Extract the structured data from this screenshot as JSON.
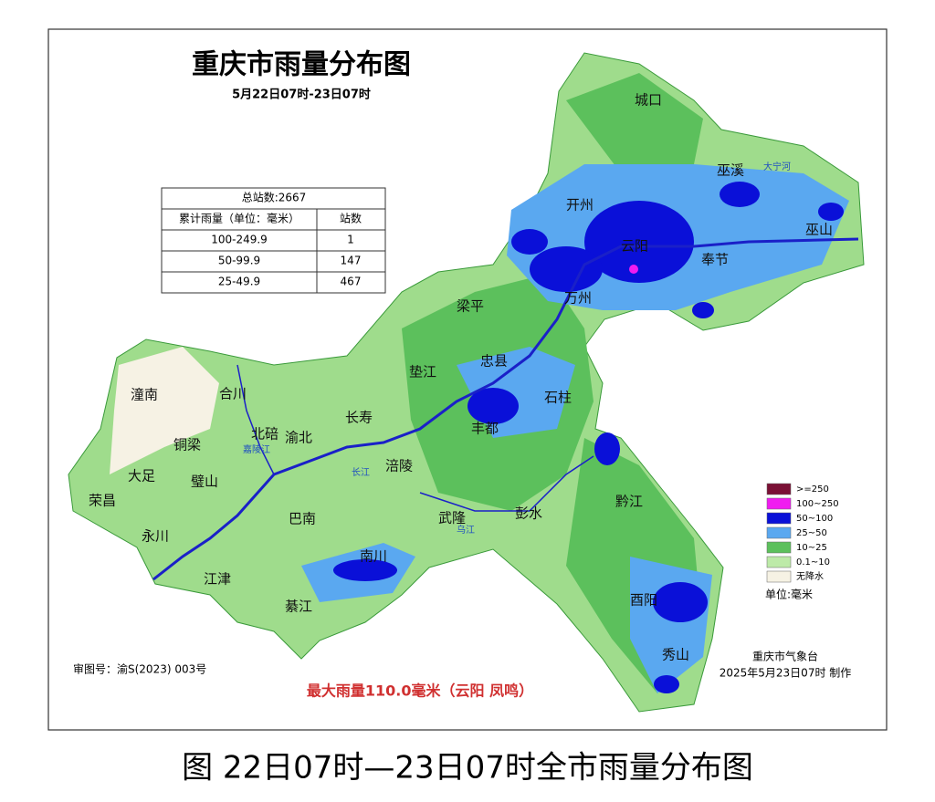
{
  "header": {
    "title": "重庆市雨量分布图",
    "subtitle": "5月22日07时-23日07时"
  },
  "table": {
    "total": "总站数:2667",
    "header": [
      "累计雨量（单位：毫米）",
      "站数"
    ],
    "rows": [
      [
        "100-249.9",
        "1"
      ],
      [
        "50-99.9",
        "147"
      ],
      [
        "25-49.9",
        "467"
      ]
    ]
  },
  "legend": {
    "items": [
      {
        "label": ">=250",
        "color": "#7a1035"
      },
      {
        "label": "100~250",
        "color": "#f01cf0"
      },
      {
        "label": "50~100",
        "color": "#0a10d8"
      },
      {
        "label": "25~50",
        "color": "#5aa8f0"
      },
      {
        "label": "10~25",
        "color": "#5cc05c"
      },
      {
        "label": "0.1~10",
        "color": "#bdeaa8"
      },
      {
        "label": "无降水",
        "color": "#f6f2e4"
      }
    ],
    "unit": "单位:毫米"
  },
  "places": [
    "城口",
    "巫溪",
    "开州",
    "云阳",
    "奉节",
    "巫山",
    "万州",
    "梁平",
    "忠县",
    "石柱",
    "垫江",
    "丰都",
    "长寿",
    "涪陵",
    "渝北",
    "北碚",
    "合川",
    "潼南",
    "铜梁",
    "大足",
    "荣昌",
    "璧山",
    "永川",
    "江津",
    "巴南",
    "南川",
    "綦江",
    "武隆",
    "彭水",
    "黔江",
    "酉阳",
    "秀山"
  ],
  "rivers": [
    "长江",
    "嘉陵江",
    "乌江",
    "大宁河"
  ],
  "footer": {
    "approval": "审图号：渝S(2023) 003号",
    "max_rain": "最大雨量110.0毫米（云阳  凤鸣）",
    "agency": "重庆市气象台",
    "made": "2025年5月23日07时  制作"
  },
  "caption": "图   22日07时—23日07时全市雨量分布图"
}
